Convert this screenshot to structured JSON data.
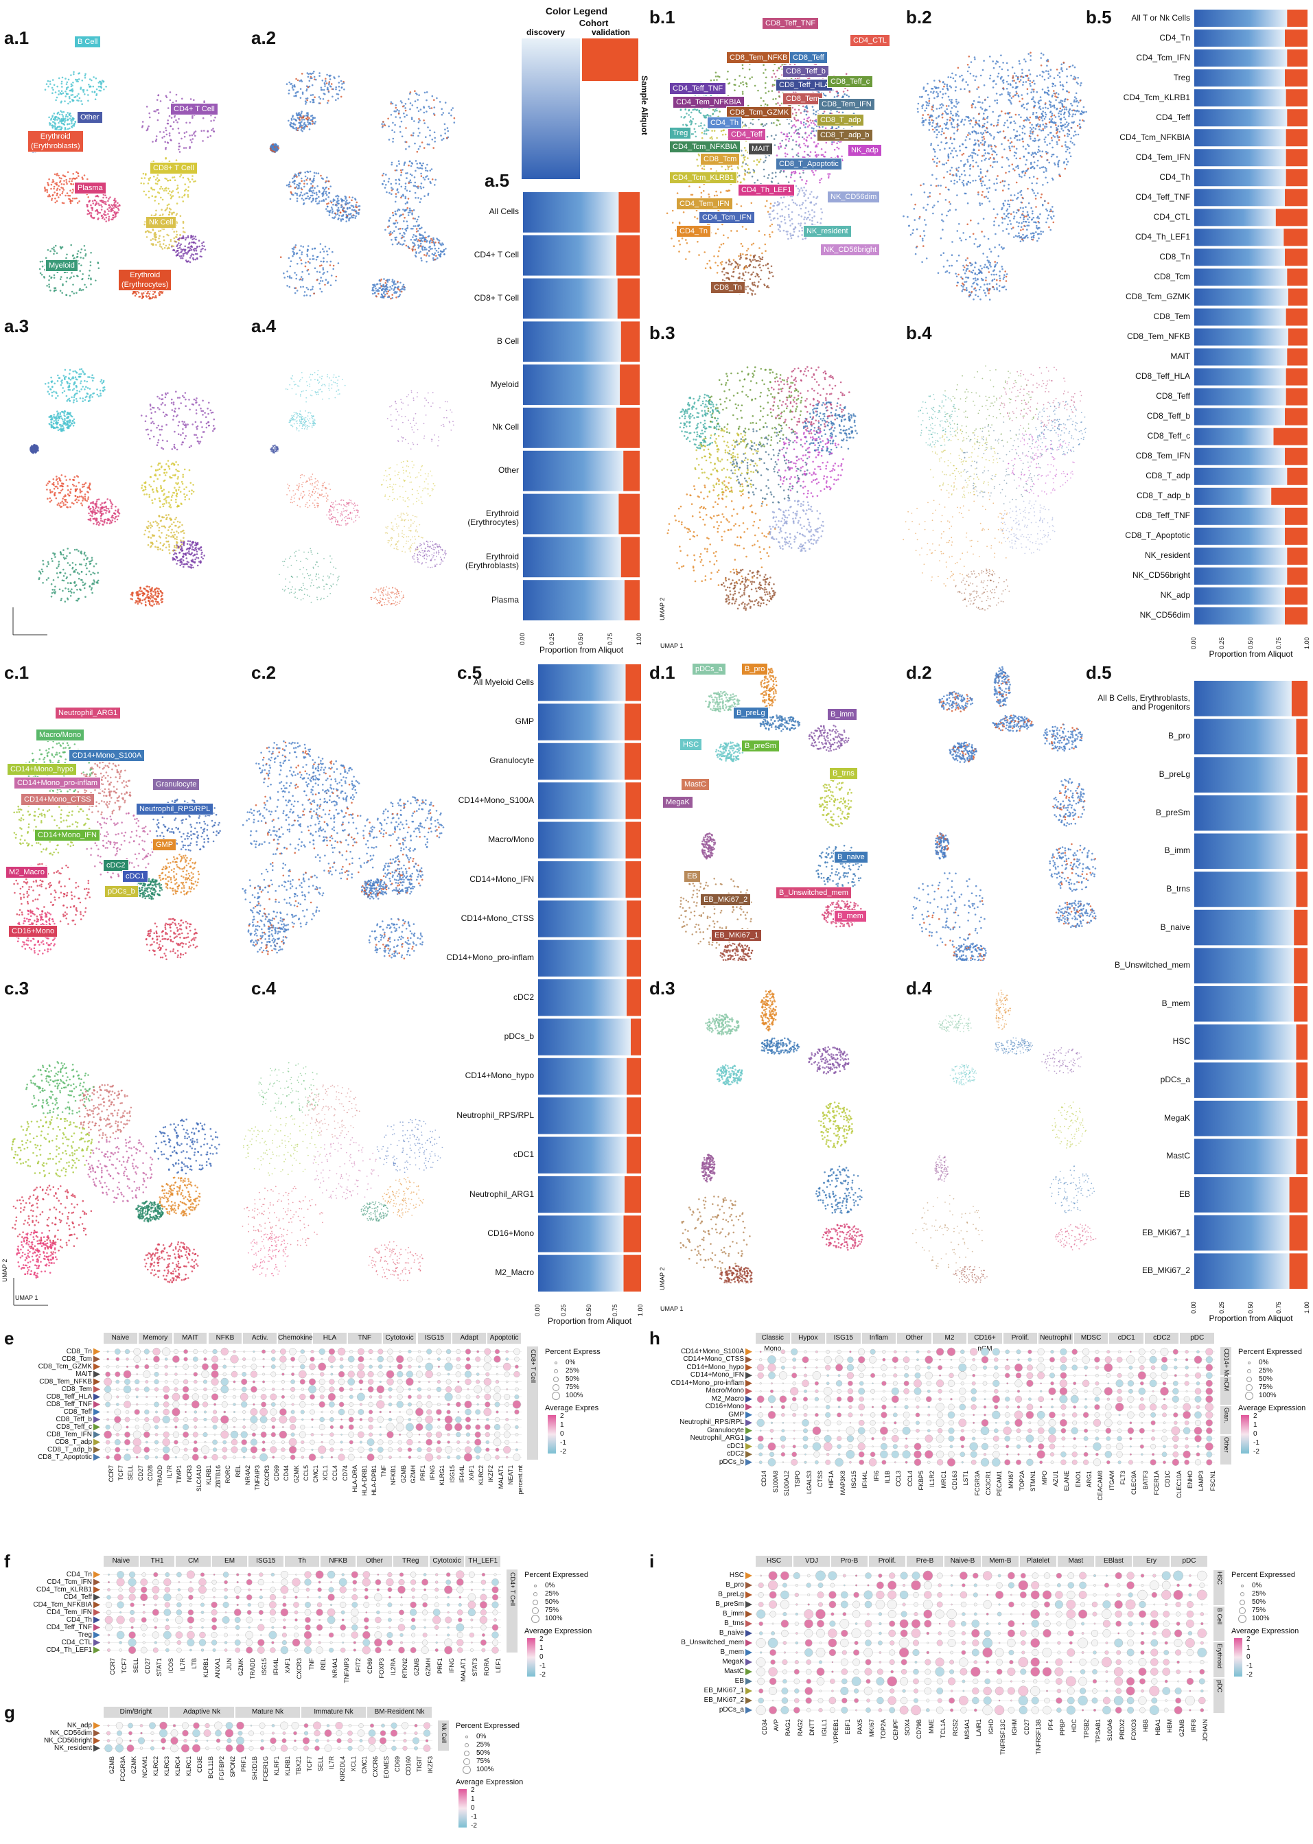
{
  "panels": {
    "a1": "a.1",
    "a2": "a.2",
    "a3": "a.3",
    "a4": "a.4",
    "a5": "a.5",
    "b1": "b.1",
    "b2": "b.2",
    "b3": "b.3",
    "b4": "b.4",
    "b5": "b.5",
    "c1": "c.1",
    "c2": "c.2",
    "c3": "c.3",
    "c4": "c.4",
    "c5": "c.5",
    "d1": "d.1",
    "d2": "d.2",
    "d3": "d.3",
    "d4": "d.4",
    "d5": "d.5",
    "e": "e",
    "f": "f",
    "g": "g",
    "h": "h",
    "i": "i"
  },
  "colors": {
    "discovery_dark": "#2f5fb3",
    "discovery_light": "#e8f1f8",
    "validation": "#e8542a",
    "validation_light": "#fbe3d8",
    "tag_bg": "#555555",
    "pink": "#d6457f",
    "teal": "#6ec6c3"
  },
  "color_legend": {
    "title": "Color Legend",
    "cohort": "Cohort",
    "discovery": "discovery",
    "validation": "validation",
    "sample_aliquot": "Sample Aliquot"
  },
  "umap_axis": {
    "x": "UMAP 1",
    "y": "UMAP 2"
  },
  "a1_tags": [
    {
      "label": "B Cell",
      "color": "#4cc3cf"
    },
    {
      "label": "Other",
      "color": "#4a5ba8"
    },
    {
      "label": "Erythroid\n(Erythroblasts)",
      "color": "#e8573d"
    },
    {
      "label": "CD4+ T Cell",
      "color": "#9a59b5"
    },
    {
      "label": "CD8+ T Cell",
      "color": "#d6c83a"
    },
    {
      "label": "Plasma",
      "color": "#d8407a"
    },
    {
      "label": "Nk Cell",
      "color": "#d9c04a"
    },
    {
      "label": "Myeloid",
      "color": "#3a9a78"
    },
    {
      "label": "Erythroid\n(Erythrocytes)",
      "color": "#e0502a"
    }
  ],
  "b1_tags": [
    {
      "label": "CD8_Teff_TNF",
      "color": "#c04e7e"
    },
    {
      "label": "CD4_CTL",
      "color": "#e45a4d"
    },
    {
      "label": "CD8_Tem_NFKB",
      "color": "#b35a2a"
    },
    {
      "label": "CD8_Teff",
      "color": "#3f78b5"
    },
    {
      "label": "CD8_Teff_b",
      "color": "#6b5aa0"
    },
    {
      "label": "CD4_Teff_TNF",
      "color": "#6b3fa8"
    },
    {
      "label": "CD8_Teff_HLA",
      "color": "#3e4e96"
    },
    {
      "label": "CD8_Teff_c",
      "color": "#6b9a3a"
    },
    {
      "label": "CD4_Tem_NFKBIA",
      "color": "#8a3a8a"
    },
    {
      "label": "CD8_Tem",
      "color": "#c05a5a"
    },
    {
      "label": "CD8_Tcm_GZMK",
      "color": "#a2552a"
    },
    {
      "label": "CD8_Tem_IFN",
      "color": "#527a96"
    },
    {
      "label": "CD4_Th",
      "color": "#5a8ad0"
    },
    {
      "label": "CD8_T_adp",
      "color": "#a8a23a"
    },
    {
      "label": "Treg",
      "color": "#4ab0a8"
    },
    {
      "label": "CD4_Teff",
      "color": "#d24ea0"
    },
    {
      "label": "CD8_T_adp_b",
      "color": "#8a6a3a"
    },
    {
      "label": "CD4_Tcm_NFKBIA",
      "color": "#3f8a5a"
    },
    {
      "label": "MAIT",
      "color": "#4a4a4a"
    },
    {
      "label": "NK_adp",
      "color": "#c44ac8"
    },
    {
      "label": "CD8_Tcm",
      "color": "#d9a33a"
    },
    {
      "label": "CD8_T_Apoptotic",
      "color": "#4a7ab0"
    },
    {
      "label": "CD4_Tcm_KLRB1",
      "color": "#c8c03a"
    },
    {
      "label": "CD4_Th_LEF1",
      "color": "#d83a8a"
    },
    {
      "label": "NK_CD56dim",
      "color": "#9aa8d8"
    },
    {
      "label": "CD4_Tem_IFN",
      "color": "#d4a03a"
    },
    {
      "label": "CD4_Tcm_IFN",
      "color": "#4a6ab8"
    },
    {
      "label": "CD4_Tn",
      "color": "#e28a2a"
    },
    {
      "label": "NK_resident",
      "color": "#5ab8b0"
    },
    {
      "label": "NK_CD56bright",
      "color": "#c88ad0"
    },
    {
      "label": "CD8_Tn",
      "color": "#9a5a3a"
    }
  ],
  "c1_tags": [
    {
      "label": "Neutrophil_ARG1",
      "color": "#d84a7a"
    },
    {
      "label": "Macro/Mono",
      "color": "#5ab86a"
    },
    {
      "label": "CD14+Mono_S100A",
      "color": "#3f7ab8"
    },
    {
      "label": "CD14+Mono_hypo",
      "color": "#a8c83a"
    },
    {
      "label": "CD14+Mono_pro-inflam",
      "color": "#c86aa8"
    },
    {
      "label": "Granulocyte",
      "color": "#8a6aa8"
    },
    {
      "label": "CD14+Mono_CTSS",
      "color": "#d27a7a"
    },
    {
      "label": "Neutrophil_RPS/RPL",
      "color": "#3f6ab8"
    },
    {
      "label": "CD14+Mono_IFN",
      "color": "#6ab83a"
    },
    {
      "label": "GMP",
      "color": "#e28a2a"
    },
    {
      "label": "cDC2",
      "color": "#2a8a6a"
    },
    {
      "label": "M2_Macro",
      "color": "#d43a7a"
    },
    {
      "label": "cDC1",
      "color": "#3f5ab8"
    },
    {
      "label": "pDCs_b",
      "color": "#c8c03a"
    },
    {
      "label": "CD16+Mono",
      "color": "#d8405a"
    }
  ],
  "d1_tags": [
    {
      "label": "pDCs_a",
      "color": "#8ac8a8"
    },
    {
      "label": "B_pro",
      "color": "#e28a2a"
    },
    {
      "label": "B_preLg",
      "color": "#3f7ab8"
    },
    {
      "label": "B_imm",
      "color": "#8a5aa8"
    },
    {
      "label": "HSC",
      "color": "#6ac8c8"
    },
    {
      "label": "B_preSm",
      "color": "#6ab83a"
    },
    {
      "label": "B_trns",
      "color": "#b8c83a"
    },
    {
      "label": "MastC",
      "color": "#d27a5a"
    },
    {
      "label": "MegaK",
      "color": "#9a5a9a"
    },
    {
      "label": "B_naive",
      "color": "#3f7ab8"
    },
    {
      "label": "EB",
      "color": "#b88a5a"
    },
    {
      "label": "EB_MKi67_2",
      "color": "#8a5a3a"
    },
    {
      "label": "B_Unswitched_mem",
      "color": "#d84a7a"
    },
    {
      "label": "B_mem",
      "color": "#e24a8a"
    },
    {
      "label": "EB_MKi67_1",
      "color": "#a04a3a"
    }
  ],
  "a5": {
    "xlabel": "Proportion from Aliquot",
    "ticks": [
      "0.00",
      "0.25",
      "0.50",
      "0.75",
      "1.00"
    ],
    "rows": [
      "All Cells",
      "CD4+ T Cell",
      "CD8+ T Cell",
      "B Cell",
      "Myeloid",
      "Nk Cell",
      "Other",
      "Erythroid\n(Erythrocytes)",
      "Erythroid\n(Erythroblasts)",
      "Plasma"
    ]
  },
  "b5": {
    "xlabel": "Proportion from Aliquot",
    "ticks": [
      "0.00",
      "0.25",
      "0.50",
      "0.75",
      "1.00"
    ],
    "rows": [
      "All T or Nk Cells",
      "CD4_Tn",
      "CD4_Tcm_IFN",
      "Treg",
      "CD4_Tcm_KLRB1",
      "CD4_Teff",
      "CD4_Tcm_NFKBIA",
      "CD4_Tem_IFN",
      "CD4_Th",
      "CD4_Teff_TNF",
      "CD4_CTL",
      "CD4_Th_LEF1",
      "CD8_Tn",
      "CD8_Tcm",
      "CD8_Tcm_GZMK",
      "CD8_Tem",
      "CD8_Tem_NFKB",
      "MAIT",
      "CD8_Teff_HLA",
      "CD8_Teff",
      "CD8_Teff_b",
      "CD8_Teff_c",
      "CD8_Tem_IFN",
      "CD8_T_adp",
      "CD8_T_adp_b",
      "CD8_Teff_TNF",
      "CD8_T_Apoptotic",
      "NK_resident",
      "NK_CD56bright",
      "NK_adp",
      "NK_CD56dim"
    ]
  },
  "c5": {
    "xlabel": "Proportion from Aliquot",
    "ticks": [
      "0.00",
      "0.25",
      "0.50",
      "0.75",
      "1.00"
    ],
    "rows": [
      "All Myeloid Cells",
      "GMP",
      "Granulocyte",
      "CD14+Mono_S100A",
      "Macro/Mono",
      "CD14+Mono_IFN",
      "CD14+Mono_CTSS",
      "CD14+Mono_pro-inflam",
      "cDC2",
      "pDCs_b",
      "CD14+Mono_hypo",
      "Neutrophil_RPS/RPL",
      "cDC1",
      "Neutrophil_ARG1",
      "CD16+Mono",
      "M2_Macro"
    ]
  },
  "d5": {
    "xlabel": "Proportion from Aliquot",
    "ticks": [
      "0.00",
      "0.25",
      "0.50",
      "0.75",
      "1.00"
    ],
    "rows": [
      "All B Cells, Erythroblasts,\nand Progenitors",
      "B_pro",
      "B_preLg",
      "B_preSm",
      "B_imm",
      "B_trns",
      "B_naive",
      "B_Unswitched_mem",
      "B_mem",
      "HSC",
      "pDCs_a",
      "MegaK",
      "MastC",
      "EB",
      "EB_MKi67_1",
      "EB_MKi67_2"
    ]
  },
  "e": {
    "groups": [
      "Naive",
      "Memory",
      "MAIT",
      "NFKB",
      "Activ.",
      "Chemokine",
      "HLA",
      "TNF",
      "Cytotoxic",
      "ISG15",
      "Adapt",
      "Apoptotic"
    ],
    "rows": [
      "CD8_Tn",
      "CD8_Tcm",
      "CD8_Tcm_GZMK",
      "MAIT",
      "CD8_Tem_NFKB",
      "CD8_Tem",
      "CD8_Teff_HLA",
      "CD8_Teff_TNF",
      "CD8_Teff",
      "CD8_Teff_b",
      "CD8_Teff_c",
      "CD8_Tem_IFN",
      "CD8_T_adp",
      "CD8_T_adp_b",
      "CD8_T_Apoptotic"
    ],
    "cols": [
      "CCR7",
      "TCF7",
      "SELL",
      "CD27",
      "CD28",
      "TRADD",
      "IL7R",
      "TIMP1",
      "NCR3",
      "SLC4A10",
      "KLRB1",
      "ZBTB16",
      "RORC",
      "REL",
      "NR4A2",
      "TNFAIP3",
      "CXCR3",
      "CD69",
      "CD44",
      "GZMK",
      "CCL5",
      "CMC1",
      "XCL1",
      "CCL4",
      "CD74",
      "HLA-DRA",
      "HLA-DRB1",
      "HLA-DPB1",
      "TNF",
      "NFKB1",
      "GZMB",
      "GZMH",
      "PRF1",
      "IFNG",
      "KLRG1",
      "ISG15",
      "IFI44L",
      "XAF1",
      "KLRC2",
      "IKZF2",
      "MALAT1",
      "NEAT1",
      "percent.mt"
    ],
    "side": "CD8+ T Cell",
    "legend_pct_title": "Percent Express",
    "legend_avg_title": "Average Expres"
  },
  "f": {
    "groups": [
      "Naive",
      "TH1",
      "CM",
      "EM",
      "ISG15",
      "Th",
      "NFKB",
      "Other",
      "TReg",
      "Cytotoxic",
      "TH_LEF1"
    ],
    "rows": [
      "CD4_Tn",
      "CD4_Tcm_IFN",
      "CD4_Tcm_KLRB1",
      "CD4_Teff",
      "CD4_Tcm_NFKBIA",
      "CD4_Tem_IFN",
      "CD4_Th",
      "CD4_Teff_TNF",
      "Treg",
      "CD4_CTL",
      "CD4_Th_LEF1"
    ],
    "cols": [
      "CCR7",
      "TCF7",
      "SELL",
      "CD27",
      "STAT1",
      "ICOS",
      "IL7R",
      "LTB",
      "KLRB1",
      "ANXA1",
      "JUN",
      "GZMK",
      "TRADD",
      "ISG15",
      "IFI44L",
      "XAF1",
      "CXCR3",
      "TNF",
      "REL",
      "NR4A1",
      "TNFAIP3",
      "IFIT2",
      "CD69",
      "FOXP3",
      "IL2RA",
      "RTKN2",
      "GZMB",
      "GZMH",
      "PRF1",
      "IFNG",
      "MALAT1",
      "STAT3",
      "RORA",
      "LEF1"
    ],
    "side": "CD4+ T Cell",
    "legend_pct_title": "Percent Expressed",
    "legend_avg_title": "Average Expression"
  },
  "g": {
    "groups": [
      "Dim/Bright",
      "Adaptive Nk",
      "Mature Nk",
      "Immature Nk",
      "BM-Resident Nk"
    ],
    "rows": [
      "NK_adp",
      "NK_CD56dim",
      "NK_CD56bright",
      "NK_resident"
    ],
    "cols": [
      "GZMB",
      "FCGR3A",
      "GZMK",
      "NCAM1",
      "KLRC2",
      "KLRC3",
      "KLRC4",
      "KLRC1",
      "CD3E",
      "BCL11B",
      "FGFBP2",
      "SPON2",
      "PRF1",
      "SH2D1B",
      "FCER1G",
      "KLRF1",
      "KLRB1",
      "TBX21",
      "TCF7",
      "SELL",
      "IL7R",
      "KIR2DL4",
      "XCL1",
      "CMC1",
      "CXCR6",
      "EOMES",
      "CD69",
      "CD160",
      "TIGIT",
      "IKZF3"
    ],
    "side": "Nk Cell",
    "legend_pct_title": "Percent Expressed",
    "legend_avg_title": "Average Expression"
  },
  "h": {
    "groups": [
      "Classic Mono",
      "Hypox",
      "ISG15",
      "Inflam",
      "Other",
      "M2",
      "CD16+ nCM",
      "Prolif.",
      "Neutrophil",
      "MDSC",
      "cDC1",
      "cDC2",
      "pDC"
    ],
    "rows": [
      "CD14+Mono_S100A",
      "CD14+Mono_CTSS",
      "CD14+Mono_hypo",
      "CD14+Mono_IFN",
      "CD14+Mono_pro-inflam",
      "Macro/Mono",
      "M2_Macro",
      "CD16+Mono",
      "GMP",
      "Neutrophil_RPS/RPL",
      "Granulocyte",
      "Neutrophil_ARG1",
      "cDC1",
      "cDC2",
      "pDCs_b"
    ],
    "cols": [
      "CD14",
      "S100A8",
      "S100A12",
      "TSPO",
      "LGALS3",
      "CTSS",
      "HIF1A",
      "MAP3K8",
      "ISG15",
      "IFI44L",
      "IFI6",
      "IL1B",
      "CCL3",
      "CCL4",
      "FKBP5",
      "IL1R2",
      "MRC1",
      "CD163",
      "LST1",
      "FCGR3A",
      "CX3CR1",
      "PECAM1",
      "MKI67",
      "TOP2A",
      "STMN1",
      "MPO",
      "AZU1",
      "ELANE",
      "ENO1",
      "ARG1",
      "CEACAM8",
      "ITGAM",
      "FLT3",
      "CLEC9A",
      "BATF3",
      "FCER1A",
      "CD1C",
      "CLEC10A",
      "ENHO",
      "LAMP3",
      "FSCN1"
    ],
    "side_strips": [
      "CD14+ Mono/Macro",
      "nCM",
      "Gran.",
      "Other"
    ],
    "legend_pct_title": "Percent Expressed",
    "legend_avg_title": "Average Expression"
  },
  "i": {
    "groups": [
      "HSC",
      "VDJ",
      "Pro-B",
      "Prolif.",
      "Pre-B",
      "Naive-B",
      "Mem-B",
      "Platelet",
      "Mast",
      "EBlast",
      "Ery",
      "pDC"
    ],
    "rows": [
      "HSC",
      "B_pro",
      "B_preLg",
      "B_preSm",
      "B_imm",
      "B_trns",
      "B_naive",
      "B_Unswitched_mem",
      "B_mem",
      "MegaK",
      "MastC",
      "EB",
      "EB_MKi67_1",
      "EB_MKi67_2",
      "pDCs_a"
    ],
    "cols": [
      "CD34",
      "AVP",
      "RAG1",
      "RAG2",
      "DNTT",
      "IGLL1",
      "VPREB1",
      "EBF1",
      "PAX5",
      "MKI67",
      "TOP2A",
      "CENPF",
      "SOX4",
      "CD79B",
      "MME",
      "TCL1A",
      "RGS2",
      "MS4A1",
      "LAIR1",
      "IGHD",
      "TNFRSF13C",
      "IGHM",
      "CD27",
      "TNFRSF13B",
      "PF4",
      "PPBP",
      "HDC",
      "TPSB2",
      "TPSAB1",
      "S100A6",
      "PRDX2",
      "FOXO3",
      "HBB",
      "HBA1",
      "HBM",
      "GZMB",
      "IRF8",
      "JCHAIN"
    ],
    "side_strips": [
      "HSC",
      "B Cell",
      "Erythroid",
      "pDC"
    ],
    "legend_pct_title": "Percent Expressed",
    "legend_avg_title": "Average Expression"
  },
  "dot_legend": {
    "pct_values": [
      "0%",
      "25%",
      "50%",
      "75%",
      "100%"
    ],
    "avg_values_e": [
      "2",
      "1",
      "0",
      "-1",
      "-2"
    ],
    "avg_values_f": [
      "2",
      "1",
      "0",
      "-1",
      "-2"
    ],
    "avg_values_g": [
      "2",
      "1",
      "0",
      "-1",
      "-2"
    ],
    "avg_values_h": [
      "2",
      "1",
      "0",
      "-1",
      "-2"
    ],
    "avg_values_i": [
      "2",
      "1",
      "0",
      "-1",
      "-2"
    ]
  },
  "chart_data": [
    {
      "type": "bar",
      "panel": "a.5",
      "xlabel": "Proportion from Aliquot",
      "categories": [
        "All Cells",
        "CD4+ T Cell",
        "CD8+ T Cell",
        "B Cell",
        "Myeloid",
        "Nk Cell",
        "Other",
        "Erythroid (Erythrocytes)",
        "Erythroid (Erythroblasts)",
        "Plasma"
      ],
      "series": [
        {
          "name": "discovery",
          "values": [
            0.82,
            0.8,
            0.81,
            0.84,
            0.83,
            0.8,
            0.86,
            0.82,
            0.84,
            0.87
          ]
        },
        {
          "name": "validation",
          "values": [
            0.18,
            0.2,
            0.19,
            0.16,
            0.17,
            0.2,
            0.14,
            0.18,
            0.16,
            0.13
          ]
        }
      ],
      "xlim": [
        0,
        1
      ]
    },
    {
      "type": "bar",
      "panel": "b.5",
      "xlabel": "Proportion from Aliquot",
      "categories": [
        "All T or Nk Cells",
        "CD4_Tn",
        "CD4_Tcm_IFN",
        "Treg",
        "CD4_Tcm_KLRB1",
        "CD4_Teff",
        "CD4_Tcm_NFKBIA",
        "CD4_Tem_IFN",
        "CD4_Th",
        "CD4_Teff_TNF",
        "CD4_CTL",
        "CD4_Th_LEF1",
        "CD8_Tn",
        "CD8_Tcm",
        "CD8_Tcm_GZMK",
        "CD8_Tem",
        "CD8_Tem_NFKB",
        "MAIT",
        "CD8_Teff_HLA",
        "CD8_Teff",
        "CD8_Teff_b",
        "CD8_Teff_c",
        "CD8_Tem_IFN",
        "CD8_T_adp",
        "CD8_T_adp_b",
        "CD8_Teff_TNF",
        "CD8_T_Apoptotic",
        "NK_resident",
        "NK_CD56bright",
        "NK_adp",
        "NK_CD56dim"
      ],
      "series": [
        {
          "name": "discovery",
          "values": [
            0.82,
            0.8,
            0.82,
            0.8,
            0.81,
            0.82,
            0.81,
            0.81,
            0.81,
            0.8,
            0.72,
            0.79,
            0.8,
            0.82,
            0.83,
            0.81,
            0.83,
            0.82,
            0.81,
            0.81,
            0.8,
            0.7,
            0.8,
            0.82,
            0.68,
            0.8,
            0.8,
            0.82,
            0.82,
            0.8,
            0.8
          ]
        },
        {
          "name": "validation",
          "values": [
            0.18,
            0.2,
            0.18,
            0.2,
            0.19,
            0.18,
            0.19,
            0.19,
            0.19,
            0.2,
            0.28,
            0.21,
            0.2,
            0.18,
            0.17,
            0.19,
            0.17,
            0.18,
            0.19,
            0.19,
            0.2,
            0.3,
            0.2,
            0.18,
            0.32,
            0.2,
            0.2,
            0.18,
            0.18,
            0.2,
            0.2
          ]
        }
      ],
      "xlim": [
        0,
        1
      ]
    },
    {
      "type": "bar",
      "panel": "c.5",
      "xlabel": "Proportion from Aliquot",
      "categories": [
        "All Myeloid Cells",
        "GMP",
        "Granulocyte",
        "CD14+Mono_S100A",
        "Macro/Mono",
        "CD14+Mono_IFN",
        "CD14+Mono_CTSS",
        "CD14+Mono_pro-inflam",
        "cDC2",
        "pDCs_b",
        "CD14+Mono_hypo",
        "Neutrophil_RPS/RPL",
        "cDC1",
        "Neutrophil_ARG1",
        "CD16+Mono",
        "M2_Macro"
      ],
      "series": [
        {
          "name": "discovery",
          "values": [
            0.85,
            0.84,
            0.84,
            0.85,
            0.85,
            0.85,
            0.86,
            0.86,
            0.86,
            0.9,
            0.86,
            0.86,
            0.86,
            0.84,
            0.83,
            0.83
          ]
        },
        {
          "name": "validation",
          "values": [
            0.15,
            0.16,
            0.16,
            0.15,
            0.15,
            0.15,
            0.14,
            0.14,
            0.14,
            0.1,
            0.14,
            0.14,
            0.14,
            0.16,
            0.17,
            0.17
          ]
        }
      ],
      "xlim": [
        0,
        1
      ]
    },
    {
      "type": "bar",
      "panel": "d.5",
      "xlabel": "Proportion from Aliquot",
      "categories": [
        "All B Cells, Erythroblasts, and Progenitors",
        "B_pro",
        "B_preLg",
        "B_preSm",
        "B_imm",
        "B_trns",
        "B_naive",
        "B_Unswitched_mem",
        "B_mem",
        "HSC",
        "pDCs_a",
        "MegaK",
        "MastC",
        "EB",
        "EB_MKi67_1",
        "EB_MKi67_2"
      ],
      "series": [
        {
          "name": "discovery",
          "values": [
            0.86,
            0.9,
            0.91,
            0.9,
            0.9,
            0.9,
            0.88,
            0.88,
            0.88,
            0.9,
            0.9,
            0.91,
            0.9,
            0.84,
            0.84,
            0.84
          ]
        },
        {
          "name": "validation",
          "values": [
            0.14,
            0.1,
            0.09,
            0.1,
            0.1,
            0.1,
            0.12,
            0.12,
            0.12,
            0.1,
            0.1,
            0.09,
            0.1,
            0.16,
            0.16,
            0.16
          ]
        }
      ],
      "xlim": [
        0,
        1
      ]
    }
  ]
}
